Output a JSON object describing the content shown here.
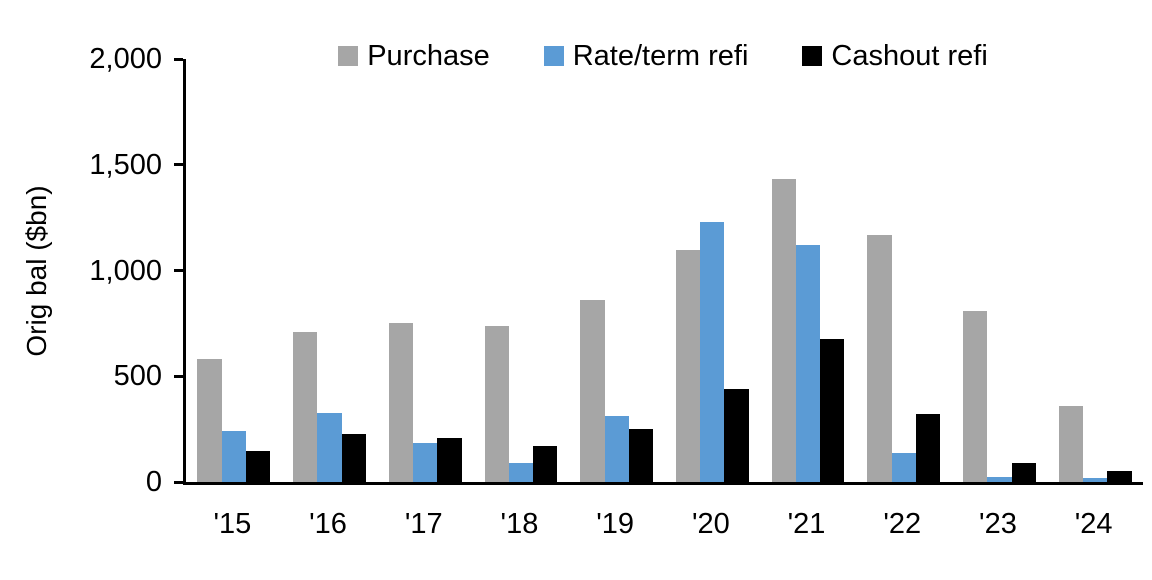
{
  "chart_data": {
    "type": "bar",
    "title": "",
    "xlabel": "",
    "ylabel": "Orig bal ($bn)",
    "categories": [
      "'15",
      "'16",
      "'17",
      "'18",
      "'19",
      "'20",
      "'21",
      "'22",
      "'23",
      "'24"
    ],
    "series": [
      {
        "name": "Purchase",
        "color": "#A6A6A6",
        "values": [
          580,
          710,
          750,
          740,
          860,
          1095,
          1435,
          1170,
          810,
          360
        ]
      },
      {
        "name": "Rate/term refi",
        "color": "#5B9BD5",
        "values": [
          240,
          325,
          185,
          90,
          310,
          1230,
          1120,
          135,
          25,
          20
        ]
      },
      {
        "name": "Cashout refi",
        "color": "#000000",
        "values": [
          145,
          225,
          210,
          170,
          250,
          440,
          675,
          320,
          90,
          50
        ]
      }
    ],
    "ylim": [
      0,
      2000
    ],
    "yticks": [
      0,
      500,
      1000,
      1500,
      2000
    ],
    "ytick_labels": [
      "0",
      "500",
      "1,000",
      "1,500",
      "2,000"
    ],
    "grid": false,
    "legend_position": "top",
    "axis_color": "#000000",
    "background_color": "#FFFFFF"
  }
}
